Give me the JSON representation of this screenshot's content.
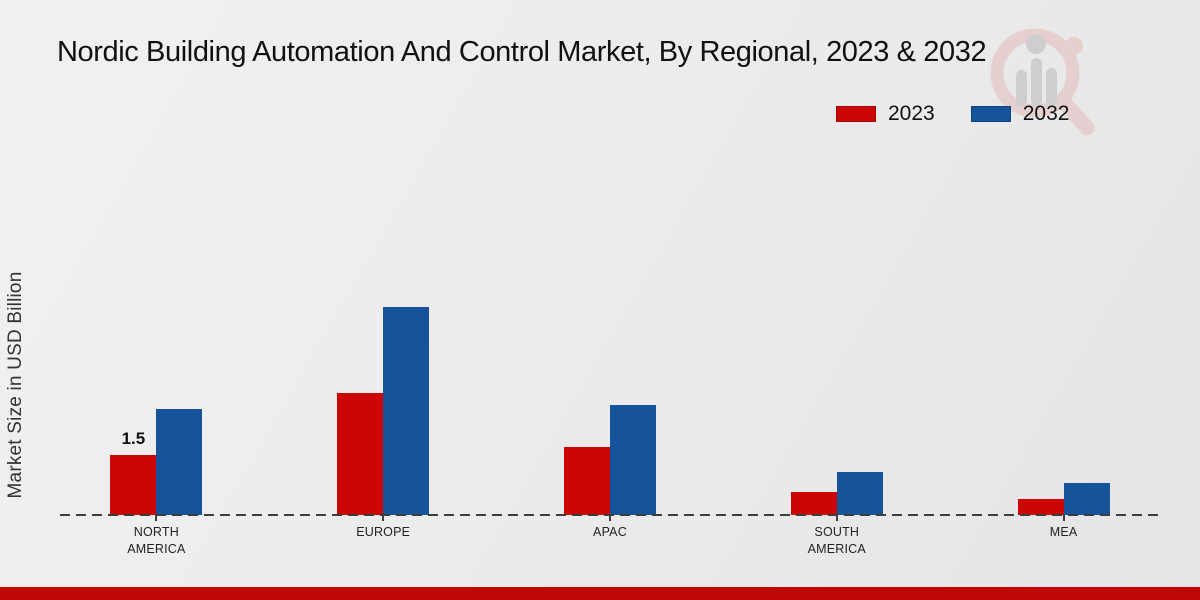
{
  "title": "Nordic Building Automation And Control Market, By Regional, 2023 & 2032",
  "ylabel": "Market Size in USD Billion",
  "legend": {
    "items": [
      {
        "label": "2023",
        "color": "#cc0605"
      },
      {
        "label": "2032",
        "color": "#15549b"
      }
    ]
  },
  "chart_data": {
    "type": "bar",
    "title": "Nordic Building Automation And Control Market, By Regional, 2023 & 2032",
    "categories": [
      "NORTH AMERICA",
      "EUROPE",
      "APAC",
      "SOUTH AMERICA",
      "MEA"
    ],
    "series": [
      {
        "name": "2023",
        "color": "#cc0605",
        "values": [
          1.5,
          3.05,
          1.7,
          0.58,
          0.4
        ]
      },
      {
        "name": "2032",
        "color": "#15549b",
        "values": [
          2.65,
          5.2,
          2.75,
          1.08,
          0.8
        ]
      }
    ],
    "annotations": [
      {
        "series": "2023",
        "category_index": 0,
        "text": "1.5"
      }
    ],
    "xlabel": "",
    "ylabel": "Market Size in USD Billion",
    "unit": "USD Billion",
    "ylim": [
      0,
      6
    ],
    "grid": false,
    "baseline_style": "dashed",
    "legend_position": "top-right"
  },
  "colors": {
    "background": "#ebebeb",
    "baseline": "#3d3d3d",
    "footer_bar": "#c00606",
    "title_text": "#111111",
    "axis_text": "#222222"
  },
  "watermark": {
    "icon": "magnifier-bar-chart-logo"
  }
}
